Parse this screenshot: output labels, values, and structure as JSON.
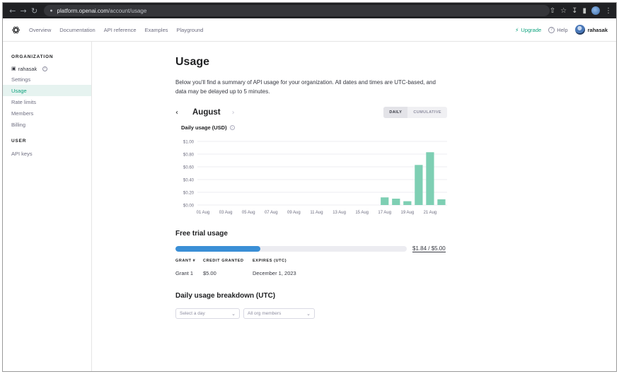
{
  "browser": {
    "url_host": "platform.openai.com",
    "url_path": "/account/usage",
    "icons": [
      "back-icon",
      "forward-icon",
      "reload-icon",
      "lock-icon",
      "share-icon",
      "star-icon",
      "download-icon",
      "sidebar-icon",
      "profile-icon",
      "menu-icon"
    ]
  },
  "topnav": {
    "links": [
      "Overview",
      "Documentation",
      "API reference",
      "Examples",
      "Playground"
    ],
    "upgrade": "Upgrade",
    "help": "Help",
    "username": "rahasak"
  },
  "sidebar": {
    "org_heading": "ORGANIZATION",
    "org_name": "rahasak",
    "org_items": [
      "Settings",
      "Usage",
      "Rate limits",
      "Members",
      "Billing"
    ],
    "active": "Usage",
    "user_heading": "USER",
    "user_items": [
      "API keys"
    ]
  },
  "main": {
    "title": "Usage",
    "description": "Below you'll find a summary of API usage for your organization. All dates and times are UTC-based, and data may be delayed up to 5 minutes.",
    "month": "August",
    "toggle": {
      "daily": "DAILY",
      "cumulative": "CUMULATIVE",
      "selected": "DAILY"
    },
    "chart_title": "Daily usage (USD)",
    "free_trial": {
      "title": "Free trial usage",
      "used_fraction": 0.368,
      "value_text": "$1.84 / $5.00"
    },
    "grant_table": {
      "headers": [
        "GRANT #",
        "CREDIT GRANTED",
        "EXPIRES (UTC)"
      ],
      "rows": [
        [
          "Grant 1",
          "$5.00",
          "December 1, 2023"
        ]
      ]
    },
    "breakdown": {
      "title": "Daily usage breakdown (UTC)",
      "day_placeholder": "Select a day",
      "members_placeholder": "All org members"
    }
  },
  "colors": {
    "accent": "#10a37f",
    "bar": "#7ecfb3",
    "progress": "#3a8fd6"
  },
  "chart_data": {
    "type": "bar",
    "title": "Daily usage (USD)",
    "categories": [
      "01 Aug",
      "02 Aug",
      "03 Aug",
      "04 Aug",
      "05 Aug",
      "06 Aug",
      "07 Aug",
      "08 Aug",
      "09 Aug",
      "10 Aug",
      "11 Aug",
      "12 Aug",
      "13 Aug",
      "14 Aug",
      "15 Aug",
      "16 Aug",
      "17 Aug",
      "18 Aug",
      "19 Aug",
      "20 Aug",
      "21 Aug",
      "22 Aug"
    ],
    "tick_labels": [
      "01 Aug",
      "03 Aug",
      "05 Aug",
      "07 Aug",
      "09 Aug",
      "11 Aug",
      "13 Aug",
      "15 Aug",
      "17 Aug",
      "19 Aug",
      "21 Aug"
    ],
    "values": [
      0,
      0,
      0,
      0,
      0,
      0,
      0,
      0,
      0,
      0,
      0,
      0,
      0,
      0,
      0,
      0,
      0.12,
      0.1,
      0.06,
      0.63,
      0.83,
      0.09
    ],
    "ylim": [
      0,
      1.0
    ],
    "yticks": [
      "$0.00",
      "$0.20",
      "$0.40",
      "$0.60",
      "$0.80",
      "$1.00"
    ],
    "ytick_values": [
      0,
      0.2,
      0.4,
      0.6,
      0.8,
      1.0
    ],
    "grid": true
  }
}
